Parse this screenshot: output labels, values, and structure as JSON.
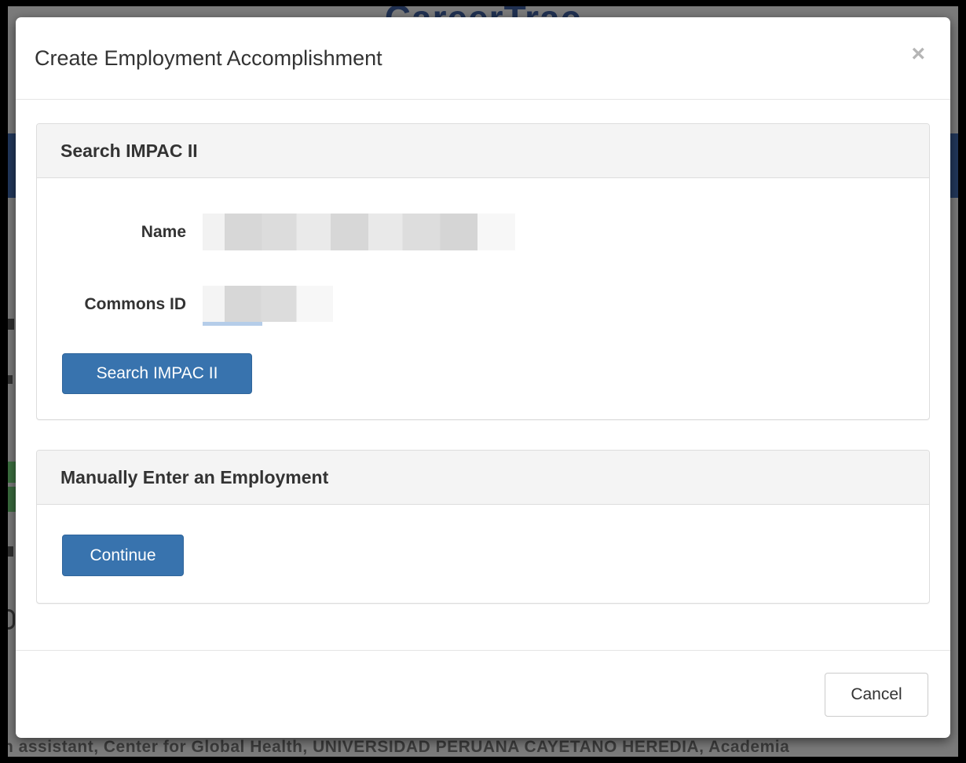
{
  "background": {
    "logo_text": "CareerTrac",
    "bottom_text": "h assistant, Center for Global Health, UNIVERSIDAD PERUANA CAYETANO HEREDIA, Academia"
  },
  "modal": {
    "title": "Create Employment Accomplishment",
    "close_label": "×",
    "search_panel": {
      "heading": "Search IMPAC II",
      "name_label": "Name",
      "name_value_redacted": true,
      "commons_id_label": "Commons ID",
      "commons_id_value_redacted": true,
      "button_label": "Search IMPAC II"
    },
    "manual_panel": {
      "heading": "Manually Enter an Employment",
      "button_label": "Continue"
    },
    "footer": {
      "cancel_label": "Cancel"
    }
  },
  "colors": {
    "primary_button": "#3873ae",
    "primary_button_border": "#2f659b",
    "panel_heading_bg": "#f4f4f4",
    "panel_border": "#dddddd",
    "modal_divider": "#e5e5e5",
    "backdrop_gray": "#7b7b7b",
    "navbar_navy": "#22385c",
    "green_accent": "#3c7040",
    "commons_underline_blue": "#b5cde9",
    "logo_navy": "#203152"
  }
}
